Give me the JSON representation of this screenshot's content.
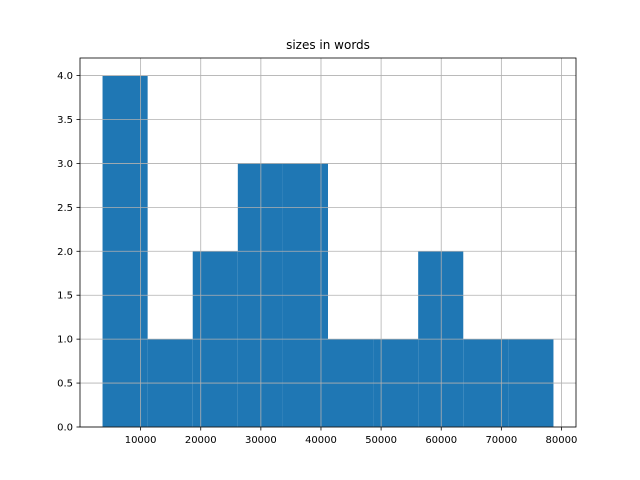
{
  "chart_data": {
    "type": "histogram",
    "title": "sizes in words",
    "bins": [
      3667,
      11167,
      18667,
      26167,
      33667,
      41167,
      48667,
      56167,
      63667,
      71167,
      78667
    ],
    "counts": [
      4,
      1,
      2,
      3,
      3,
      1,
      1,
      2,
      1,
      1
    ],
    "color": "#1f77b4",
    "xlim": [
      -83,
      82417
    ],
    "ylim": [
      0,
      4.2
    ],
    "xticks": [
      10000,
      20000,
      30000,
      40000,
      50000,
      60000,
      70000,
      80000
    ],
    "yticks": [
      {
        "value": 0,
        "label": "0.0"
      },
      0.5,
      {
        "value": 1,
        "label": "1.0"
      },
      1.5,
      {
        "value": 2,
        "label": "2.0"
      },
      2.5,
      {
        "value": 3,
        "label": "3.0"
      },
      3.5,
      {
        "value": 4,
        "label": "4.0"
      }
    ],
    "grid": true
  }
}
